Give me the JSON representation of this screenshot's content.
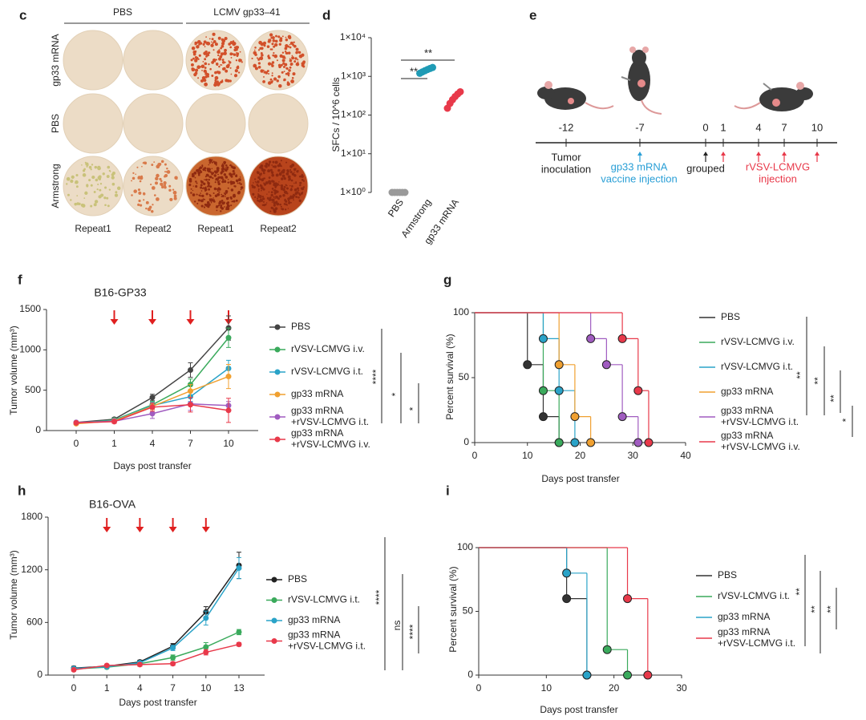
{
  "figure_panels": [
    {
      "label": "c",
      "column_groups": [
        "PBS",
        "LCMV gp33–41"
      ],
      "rows": [
        "gp33 mRNA",
        "PBS",
        "Armstrong"
      ],
      "columns": [
        "Repeat1",
        "Repeat2",
        "Repeat1",
        "Repeat2"
      ]
    },
    {
      "label": "e",
      "days": [
        "-12",
        "-7",
        "0",
        "1",
        "4",
        "7",
        "10"
      ],
      "events": [
        "Tumor\ninoculation",
        "gp33 mRNA\nvaccine injection",
        "grouped",
        "rVSV-LCMVG\ninjection"
      ]
    }
  ],
  "chart_data": [
    {
      "type": "strip",
      "label": "d",
      "y_label": "SFCs / 10^6 cells",
      "log_scale": true,
      "ylim": [
        1,
        10000
      ],
      "yticks": [
        {
          "value": 1,
          "label": "1×10⁰"
        },
        {
          "value": 10,
          "label": "1×10¹"
        },
        {
          "value": 100,
          "label": "1×10²"
        },
        {
          "value": 1000,
          "label": "1×10³"
        },
        {
          "value": 10000,
          "label": "1×10⁴"
        }
      ],
      "groups": [
        {
          "name": "PBS",
          "color": "#9a9a9a",
          "values": [
            1,
            1,
            1,
            1,
            1,
            1
          ]
        },
        {
          "name": "Armstrong",
          "color": "#1f9bb5",
          "values": [
            1200,
            1300,
            1400,
            1500,
            1600,
            1700
          ]
        },
        {
          "name": "gp33 mRNA",
          "color": "#e8394a",
          "values": [
            150,
            200,
            250,
            300,
            350,
            400
          ]
        }
      ],
      "annotations": [
        "**",
        "**"
      ]
    },
    {
      "type": "line",
      "label": "f",
      "title": "B16-GP33",
      "x_label": "Days post transfer",
      "y_label": "Tumor volume (mm³)",
      "categories": [
        "0",
        "1",
        "4",
        "7",
        "10"
      ],
      "ylim": [
        0,
        1500
      ],
      "yticks": [
        0,
        500,
        1000,
        1500
      ],
      "series": [
        {
          "name": "PBS",
          "color": "#444444",
          "values": [
            100,
            140,
            410,
            750,
            1270
          ],
          "errors": [
            15,
            20,
            40,
            90,
            150
          ]
        },
        {
          "name": "rVSV-LCMVG i.v.",
          "color": "#3aaa5c",
          "values": [
            95,
            130,
            320,
            570,
            1150
          ],
          "errors": [
            15,
            20,
            40,
            70,
            120
          ]
        },
        {
          "name": "rVSV-LCMVG i.t.",
          "color": "#2aa3c8",
          "values": [
            90,
            125,
            310,
            420,
            770
          ],
          "errors": [
            15,
            20,
            40,
            60,
            100
          ]
        },
        {
          "name": "gp33 mRNA",
          "color": "#f0a030",
          "values": [
            85,
            120,
            300,
            490,
            670
          ],
          "errors": [
            15,
            20,
            40,
            80,
            150
          ]
        },
        {
          "name": "gp33 mRNA\n+rVSV-LCMVG i.t.",
          "color": "#a05cc0",
          "values": [
            100,
            115,
            210,
            330,
            310
          ],
          "errors": [
            15,
            20,
            60,
            80,
            50
          ]
        },
        {
          "name": "gp33 mRNA\n+rVSV-LCMVG i.v.",
          "color": "#e8394a",
          "values": [
            95,
            110,
            290,
            320,
            250
          ],
          "errors": [
            15,
            20,
            50,
            90,
            150
          ]
        }
      ],
      "annotations": [
        "****",
        "*",
        "*"
      ]
    },
    {
      "type": "survival",
      "label": "g",
      "x_label": "Days post transfer",
      "y_label": "Percent survival (%)",
      "xlim": [
        0,
        40
      ],
      "xticks": [
        0,
        10,
        20,
        30,
        40
      ],
      "ylim": [
        0,
        100
      ],
      "yticks": [
        0,
        50,
        100
      ],
      "series": [
        {
          "name": "PBS",
          "color": "#333333",
          "x": [
            0,
            10,
            13,
            16
          ],
          "values": [
            100,
            60,
            20,
            0
          ]
        },
        {
          "name": "rVSV-LCMVG i.v.",
          "color": "#3aaa5c",
          "x": [
            0,
            13,
            16
          ],
          "values": [
            100,
            40,
            0
          ]
        },
        {
          "name": "rVSV-LCMVG i.t.",
          "color": "#2aa3c8",
          "x": [
            0,
            13,
            16,
            19
          ],
          "values": [
            100,
            80,
            40,
            0
          ]
        },
        {
          "name": "gp33 mRNA",
          "color": "#f0a030",
          "x": [
            0,
            16,
            19,
            22
          ],
          "values": [
            100,
            60,
            20,
            0
          ]
        },
        {
          "name": "gp33 mRNA\n+rVSV-LCMVG i.t.",
          "color": "#a05cc0",
          "x": [
            0,
            22,
            25,
            28,
            31
          ],
          "values": [
            100,
            80,
            60,
            20,
            0
          ]
        },
        {
          "name": "gp33 mRNA\n+rVSV-LCMVG i.v.",
          "color": "#e8394a",
          "x": [
            0,
            28,
            31,
            33
          ],
          "values": [
            100,
            80,
            40,
            0
          ]
        }
      ],
      "annotations": [
        "**",
        "**",
        "**",
        "*"
      ]
    },
    {
      "type": "line",
      "label": "h",
      "title": "B16-OVA",
      "x_label": "Days post transfer",
      "y_label": "Tumor volume (mm³)",
      "categories": [
        "0",
        "1",
        "4",
        "7",
        "10",
        "13"
      ],
      "ylim": [
        0,
        1800
      ],
      "yticks": [
        0,
        600,
        1200,
        1800
      ],
      "series": [
        {
          "name": "PBS",
          "color": "#222222",
          "values": [
            80,
            100,
            150,
            330,
            720,
            1250
          ],
          "errors": [
            20,
            20,
            20,
            30,
            60,
            150
          ]
        },
        {
          "name": "rVSV-LCMVG i.t.",
          "color": "#3aaa5c",
          "values": [
            70,
            90,
            130,
            200,
            320,
            490
          ],
          "errors": [
            15,
            15,
            20,
            30,
            50,
            30
          ]
        },
        {
          "name": "gp33 mRNA",
          "color": "#2aa3c8",
          "values": [
            75,
            95,
            140,
            310,
            650,
            1220
          ],
          "errors": [
            15,
            15,
            20,
            30,
            80,
            120
          ]
        },
        {
          "name": "gp33 mRNA\n+rVSV-LCMVG i.t.",
          "color": "#e8394a",
          "values": [
            60,
            110,
            120,
            130,
            260,
            350
          ],
          "errors": [
            15,
            15,
            20,
            20,
            30,
            20
          ]
        }
      ],
      "annotations": [
        "****",
        "ns",
        "****"
      ]
    },
    {
      "type": "survival",
      "label": "i",
      "x_label": "Days post transfer",
      "y_label": "Percent survival (%)",
      "xlim": [
        0,
        30
      ],
      "xticks": [
        0,
        10,
        20,
        30
      ],
      "ylim": [
        0,
        100
      ],
      "yticks": [
        0,
        50,
        100
      ],
      "series": [
        {
          "name": "PBS",
          "color": "#333333",
          "x": [
            0,
            13,
            16
          ],
          "values": [
            100,
            60,
            0
          ]
        },
        {
          "name": "rVSV-LCMVG i.t.",
          "color": "#3aaa5c",
          "x": [
            0,
            19,
            22
          ],
          "values": [
            100,
            20,
            0
          ]
        },
        {
          "name": "gp33 mRNA",
          "color": "#2aa3c8",
          "x": [
            0,
            13,
            16
          ],
          "values": [
            100,
            80,
            0
          ]
        },
        {
          "name": "gp33 mRNA\n+rVSV-LCMVG i.t.",
          "color": "#e8394a",
          "x": [
            0,
            22,
            25
          ],
          "values": [
            100,
            60,
            0
          ]
        }
      ],
      "annotations": [
        "**",
        "**",
        "**"
      ]
    }
  ]
}
